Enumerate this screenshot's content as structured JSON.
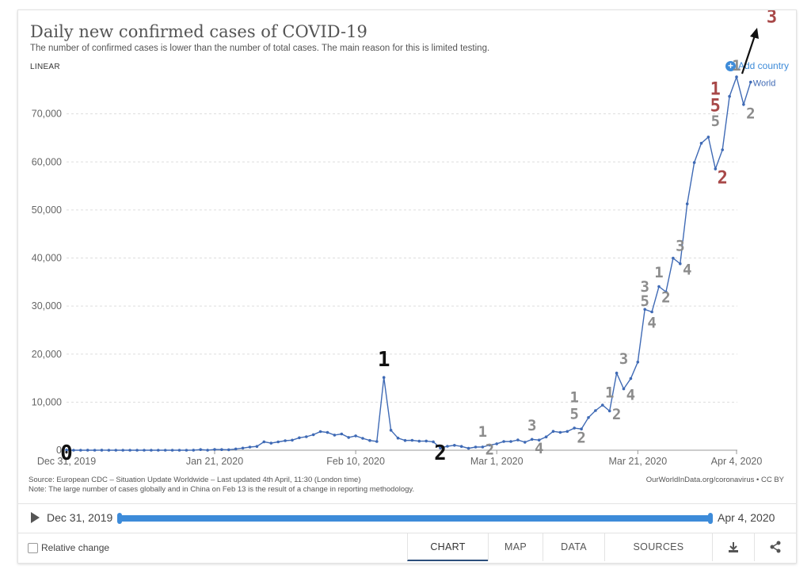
{
  "header": {
    "title": "Daily new confirmed cases of COVID-19",
    "subtitle": "The number of confirmed cases is lower than the number of total cases. The main reason for this is limited testing.",
    "scale_toggle": "LINEAR",
    "add_country": "Add country"
  },
  "footer": {
    "source": "Source: European CDC – Situation Update Worldwide – Last updated 4th April, 11:30 (London time)",
    "note": "Note: The large number of cases globally and in China on Feb 13 is the result of a change in reporting methodology.",
    "credit": "OurWorldInData.org/coronavirus • CC BY"
  },
  "timeline": {
    "start": "Dec 31, 2019",
    "end": "Apr 4, 2020"
  },
  "controls": {
    "relative_change": "Relative change",
    "tabs": [
      "CHART",
      "MAP",
      "DATA",
      "SOURCES"
    ],
    "active_tab": "CHART"
  },
  "colors": {
    "line": "#3f6ab5",
    "accent": "#3d8bd9",
    "annotation_gray": "#8c8c8c",
    "annotation_red": "#a84848",
    "annotation_black": "#111111"
  },
  "icons": {
    "download": "download-icon",
    "share": "share-icon",
    "play": "play-icon",
    "add": "plus-circle-icon"
  },
  "chart_data": {
    "type": "line",
    "ylim": [
      0,
      80000
    ],
    "yticks": [
      0,
      10000,
      20000,
      30000,
      40000,
      50000,
      60000,
      70000
    ],
    "ytick_labels": [
      "0",
      "10,000",
      "20,000",
      "30,000",
      "40,000",
      "50,000",
      "60,000",
      "70,000"
    ],
    "xtick_labels": [
      "Dec 31, 2019",
      "Jan 21, 2020",
      "Feb 10, 2020",
      "Mar 1, 2020",
      "Mar 21, 2020",
      "Apr 4, 2020"
    ],
    "xtick_days": [
      0,
      21,
      41,
      61,
      81,
      95
    ],
    "series": [
      {
        "name": "World",
        "values": [
          27,
          0,
          0,
          17,
          0,
          15,
          0,
          0,
          0,
          0,
          0,
          1,
          1,
          0,
          1,
          0,
          0,
          4,
          17,
          136,
          19,
          151,
          140,
          97,
          259,
          441,
          665,
          787,
          1753,
          1466,
          1740,
          1980,
          2102,
          2590,
          2809,
          3235,
          3884,
          3697,
          3151,
          3387,
          2653,
          2984,
          2473,
          2022,
          1820,
          15141,
          4156,
          2525,
          2028,
          2054,
          1882,
          1913,
          1747,
          470,
          831,
          1021,
          799,
          401,
          653,
          680,
          1075,
          1328,
          1817,
          1808,
          2126,
          1671,
          2255,
          2117,
          2769,
          3919,
          3719,
          3912,
          4597,
          4416,
          6797,
          8253,
          9383,
          8162,
          16045,
          12764,
          14915,
          18336,
          29316,
          28786,
          34069,
          32941,
          39964,
          38808,
          51270,
          59861,
          63890,
          65174,
          58546,
          62513,
          73634,
          77669,
          71952,
          76598
        ]
      }
    ],
    "annotations": [
      {
        "label": "0",
        "day": 0,
        "value": -2000,
        "color": "black"
      },
      {
        "label": "1",
        "day": 45,
        "value": 17500,
        "color": "black"
      },
      {
        "label": "2",
        "day": 53,
        "value": -2000,
        "color": "black"
      },
      {
        "label": "1",
        "day": 59,
        "value": 2800,
        "color": "gray"
      },
      {
        "label": "2",
        "day": 60,
        "value": -900,
        "color": "gray"
      },
      {
        "label": "3",
        "day": 66,
        "value": 4100,
        "color": "gray"
      },
      {
        "label": "4",
        "day": 67,
        "value": -700,
        "color": "gray"
      },
      {
        "label": "1",
        "day": 72,
        "value": 10000,
        "color": "gray"
      },
      {
        "label": "5",
        "day": 72,
        "value": 6500,
        "color": "gray"
      },
      {
        "label": "2",
        "day": 73,
        "value": 1600,
        "color": "gray"
      },
      {
        "label": "1",
        "day": 77,
        "value": 11000,
        "color": "gray"
      },
      {
        "label": "2",
        "day": 78,
        "value": 6400,
        "color": "gray"
      },
      {
        "label": "3",
        "day": 79,
        "value": 18000,
        "color": "gray"
      },
      {
        "label": "4",
        "day": 80,
        "value": 10500,
        "color": "gray"
      },
      {
        "label": "3",
        "day": 82,
        "value": 33000,
        "color": "gray"
      },
      {
        "label": "5",
        "day": 82,
        "value": 30000,
        "color": "gray"
      },
      {
        "label": "4",
        "day": 83,
        "value": 25500,
        "color": "gray"
      },
      {
        "label": "1",
        "day": 84,
        "value": 36000,
        "color": "gray"
      },
      {
        "label": "2",
        "day": 85,
        "value": 30800,
        "color": "gray"
      },
      {
        "label": "3",
        "day": 87,
        "value": 41500,
        "color": "gray"
      },
      {
        "label": "4",
        "day": 88,
        "value": 36500,
        "color": "gray"
      },
      {
        "label": "1",
        "day": 92,
        "value": 74000,
        "color": "red"
      },
      {
        "label": "5",
        "day": 92,
        "value": 70500,
        "color": "red"
      },
      {
        "label": "5",
        "day": 92,
        "value": 67500,
        "color": "gray"
      },
      {
        "label": "2",
        "day": 93,
        "value": 55500,
        "color": "red"
      },
      {
        "label": "1",
        "day": 95,
        "value": 79000,
        "color": "gray"
      },
      {
        "label": "2",
        "day": 97,
        "value": 69000,
        "color": "gray"
      },
      {
        "label": "3",
        "day": 100,
        "value": 89000,
        "color": "red"
      }
    ]
  }
}
